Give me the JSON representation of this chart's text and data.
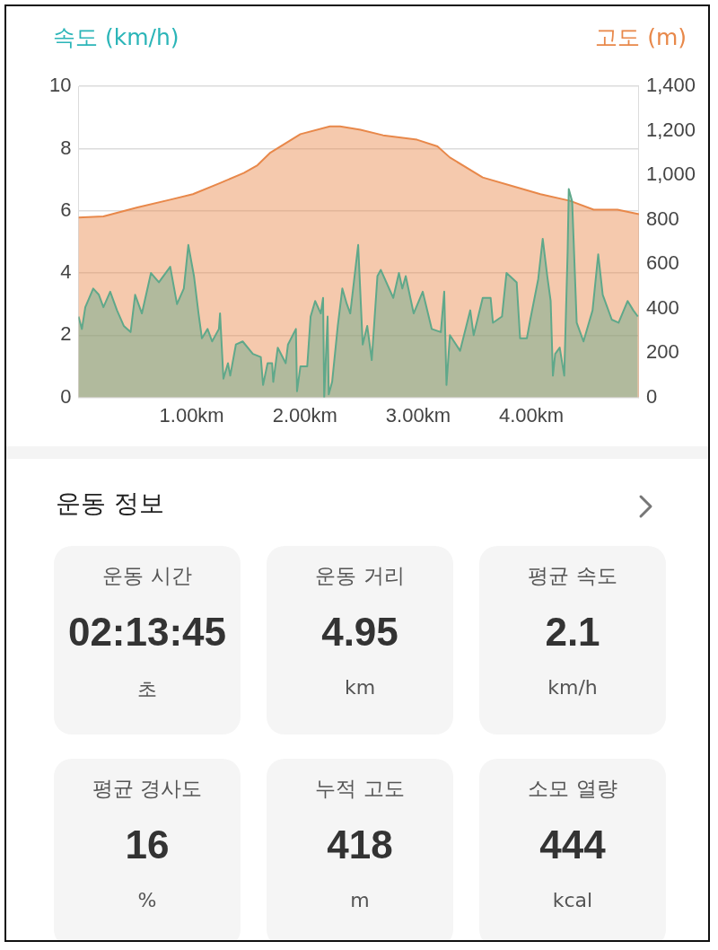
{
  "chart_data": [
    {
      "type": "area",
      "ylabel": "속도 (km/h)",
      "y2label": "고도 (m)",
      "xlim": [
        0,
        4.95
      ],
      "xticks": [
        {
          "value": 1,
          "label": "1.00km"
        },
        {
          "value": 2,
          "label": "2.00km"
        },
        {
          "value": 3,
          "label": "3.00km"
        },
        {
          "value": 4,
          "label": "4.00km"
        }
      ],
      "ylim": [
        0,
        10
      ],
      "yticks": [
        0,
        2,
        4,
        6,
        8,
        10
      ],
      "y2lim": [
        0,
        1400
      ],
      "y2ticks": [
        0,
        200,
        400,
        600,
        800,
        {
          "value": 1000,
          "label": "1,000"
        },
        {
          "value": 1200,
          "label": "1,200"
        },
        {
          "value": 1400,
          "label": "1,400"
        }
      ],
      "grid": "y",
      "legend": false,
      "series": [
        {
          "type": "area",
          "color": "#5fa88a",
          "x": [
            0,
            0.03,
            0.06,
            0.13,
            0.18,
            0.22,
            0.28,
            0.34,
            0.4,
            0.46,
            0.5,
            0.56,
            0.64,
            0.71,
            0.81,
            0.87,
            0.93,
            0.97,
            1.02,
            1.06,
            1.09,
            1.14,
            1.18,
            1.24,
            1.25,
            1.28,
            1.32,
            1.34,
            1.39,
            1.45,
            1.54,
            1.61,
            1.63,
            1.67,
            1.71,
            1.72,
            1.76,
            1.83,
            1.85,
            1.92,
            1.93,
            1.96,
            2.02,
            2.05,
            2.09,
            2.14,
            2.16,
            2.17,
            2.2,
            2.21,
            2.24,
            2.29,
            2.33,
            2.37,
            2.4,
            2.47,
            2.51,
            2.55,
            2.59,
            2.64,
            2.67,
            2.78,
            2.83,
            2.86,
            2.89,
            2.96,
            3.04,
            3.12,
            3.2,
            3.23,
            3.25,
            3.28,
            3.37,
            3.46,
            3.49,
            3.57,
            3.64,
            3.66,
            3.74,
            3.78,
            3.87,
            3.9,
            3.96,
            3.99,
            4.06,
            4.1,
            4.14,
            4.17,
            4.19,
            4.21,
            4.25,
            4.29,
            4.32,
            4.33,
            4.36,
            4.4,
            4.46,
            4.54,
            4.59,
            4.63,
            4.71,
            4.77,
            4.85,
            4.9,
            4.94
          ],
          "values": [
            2.6,
            2.2,
            2.9,
            3.5,
            3.3,
            2.9,
            3.4,
            2.8,
            2.3,
            2.1,
            3.3,
            2.7,
            4.0,
            3.7,
            4.2,
            3.0,
            3.5,
            4.9,
            3.9,
            2.7,
            1.9,
            2.2,
            1.8,
            2.2,
            2.7,
            0.6,
            1.1,
            0.7,
            1.7,
            1.8,
            1.4,
            1.3,
            0.4,
            1.1,
            1.1,
            0.5,
            1.6,
            1.1,
            1.7,
            2.2,
            0.2,
            1.0,
            1.0,
            2.6,
            3.1,
            2.7,
            3.2,
            0.0,
            2.6,
            0.1,
            0.5,
            2.3,
            3.5,
            3.0,
            2.7,
            4.9,
            1.7,
            2.3,
            1.2,
            3.9,
            4.1,
            3.2,
            4.0,
            3.5,
            3.9,
            2.7,
            3.4,
            2.2,
            2.1,
            3.4,
            0.4,
            2.0,
            1.5,
            2.8,
            2.0,
            3.2,
            3.2,
            2.4,
            2.6,
            4.0,
            3.7,
            1.9,
            1.9,
            2.5,
            3.8,
            5.1,
            3.9,
            3.1,
            0.7,
            1.4,
            1.6,
            0.7,
            4.7,
            6.7,
            6.3,
            2.4,
            1.8,
            2.8,
            4.6,
            3.3,
            2.5,
            2.4,
            3.1,
            2.8,
            2.6
          ]
        },
        {
          "type": "area",
          "axis": "y2",
          "color": "#e8884a",
          "x": [
            0,
            0.22,
            0.52,
            0.81,
            1.01,
            1.25,
            1.46,
            1.58,
            1.69,
            1.96,
            2.22,
            2.31,
            2.49,
            2.69,
            2.99,
            3.17,
            3.28,
            3.57,
            3.84,
            4.08,
            4.34,
            4.55,
            4.76,
            4.95
          ],
          "values": [
            810,
            815,
            855,
            890,
            915,
            965,
            1010,
            1045,
            1100,
            1185,
            1220,
            1220,
            1205,
            1180,
            1160,
            1130,
            1080,
            990,
            950,
            915,
            885,
            845,
            845,
            825
          ]
        }
      ]
    },
    {
      "type": "other",
      "title": "운동 정보",
      "annotations": [
        "운동 시간",
        "02:13:45",
        "초",
        "운동 거리",
        "4.95",
        "km",
        "평균 속도",
        "2.1",
        "km/h",
        "평균 경사도",
        "16",
        "%",
        "누적 고도",
        "418",
        "m",
        "소모 열량",
        "444",
        "kcal"
      ]
    }
  ]
}
